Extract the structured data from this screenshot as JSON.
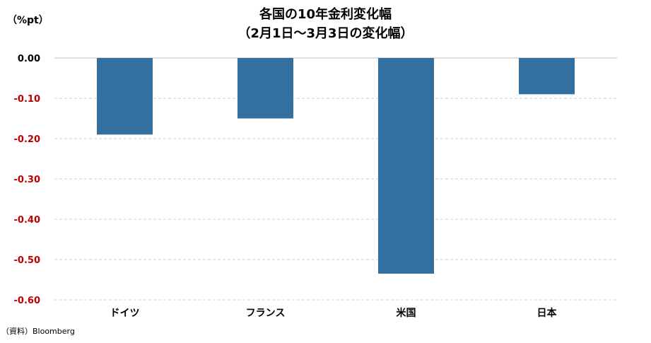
{
  "chart_data": {
    "type": "bar",
    "title": "各国の10年金利変化幅",
    "subtitle": "（2月1日～3月3日の変化幅）",
    "ylabel": "（%pt）",
    "xlabel": "",
    "categories": [
      "ドイツ",
      "フランス",
      "米国",
      "日本"
    ],
    "values": [
      -0.19,
      -0.15,
      -0.535,
      -0.09
    ],
    "ylim": [
      -0.6,
      0.0
    ],
    "yticks": [
      0.0,
      -0.1,
      -0.2,
      -0.3,
      -0.4,
      -0.5,
      -0.6
    ],
    "ytick_labels": [
      "0.00",
      "-0.10",
      "-0.20",
      "-0.30",
      "-0.40",
      "-0.50",
      "-0.60"
    ],
    "grid": true,
    "legend": "none"
  },
  "colors": {
    "bar": "#3370a0",
    "negative_tick": "#c00000",
    "zero_tick": "#000000",
    "grid": "#d0d0d0"
  },
  "source": "（資料）Bloomberg"
}
